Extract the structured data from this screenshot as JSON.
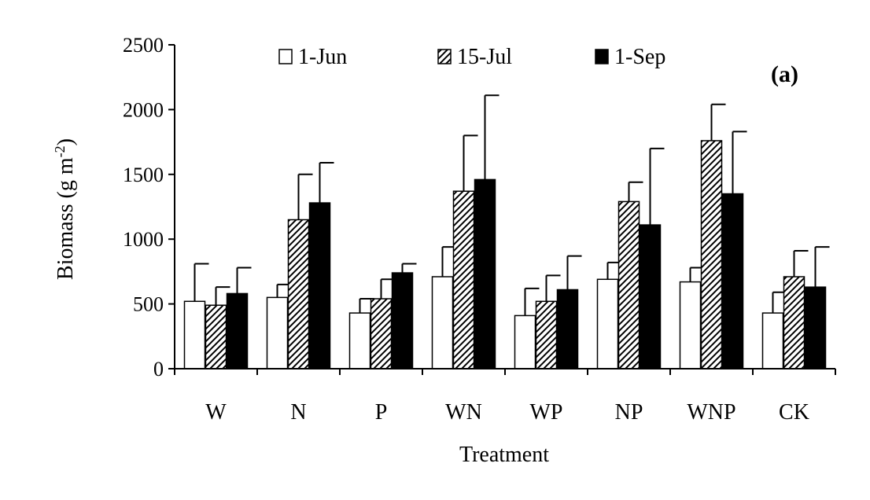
{
  "chart_data": {
    "type": "bar",
    "panel_label": "(a)",
    "xlabel": "Treatment",
    "ylabel": "Biomass (g m",
    "ylabel_sup": "-2",
    "ylabel_close": ")",
    "ylim": [
      0,
      2500
    ],
    "yticks": [
      0,
      500,
      1000,
      1500,
      2000,
      2500
    ],
    "categories": [
      "W",
      "N",
      "P",
      "WN",
      "WP",
      "NP",
      "WNP",
      "CK"
    ],
    "legend_position": "top",
    "series": [
      {
        "name": "1-Jun",
        "fill": "white",
        "values": [
          520,
          550,
          430,
          710,
          410,
          690,
          670,
          430
        ],
        "errors": [
          290,
          100,
          110,
          230,
          210,
          130,
          110,
          160
        ]
      },
      {
        "name": "15-Jul",
        "fill": "hatched",
        "values": [
          490,
          1150,
          540,
          1370,
          520,
          1290,
          1760,
          710
        ],
        "errors": [
          140,
          350,
          150,
          430,
          200,
          150,
          280,
          200
        ]
      },
      {
        "name": "1-Sep",
        "fill": "black",
        "values": [
          580,
          1280,
          740,
          1460,
          610,
          1110,
          1350,
          630
        ],
        "errors": [
          200,
          310,
          70,
          650,
          260,
          590,
          480,
          310
        ]
      }
    ]
  }
}
